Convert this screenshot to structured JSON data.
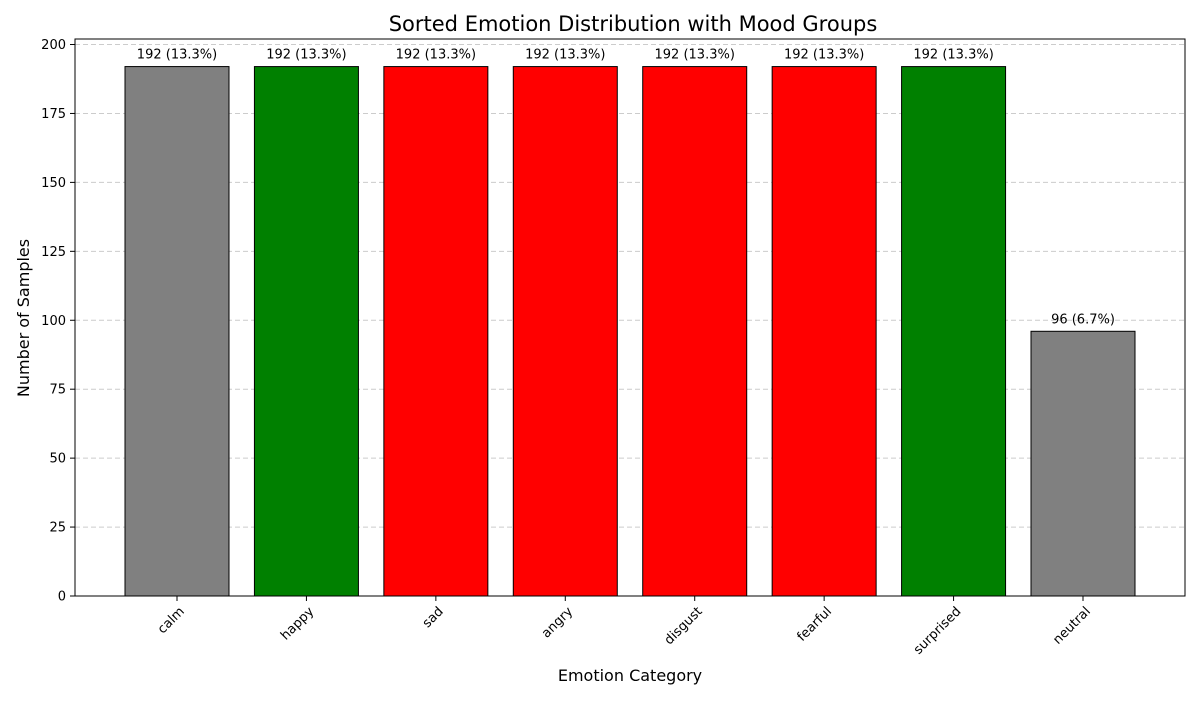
{
  "chart_data": {
    "type": "bar",
    "title": "Sorted Emotion Distribution with Mood Groups",
    "xlabel": "Emotion Category",
    "ylabel": "Number of Samples",
    "ylim": [
      0,
      202
    ],
    "yticks": [
      0,
      25,
      50,
      75,
      100,
      125,
      150,
      175,
      200
    ],
    "grid": "y-dashed",
    "categories": [
      "calm",
      "happy",
      "sad",
      "angry",
      "disgust",
      "fearful",
      "surprised",
      "neutral"
    ],
    "values": [
      192,
      192,
      192,
      192,
      192,
      192,
      192,
      96
    ],
    "data_labels": [
      "192 (13.3%)",
      "192 (13.3%)",
      "192 (13.3%)",
      "192 (13.3%)",
      "192 (13.3%)",
      "192 (13.3%)",
      "192 (13.3%)",
      "96 (6.7%)"
    ],
    "bar_colors": [
      "#808080",
      "#008000",
      "#ff0000",
      "#ff0000",
      "#ff0000",
      "#ff0000",
      "#008000",
      "#808080"
    ],
    "edge_color": "#000000",
    "xtick_rotation_deg": 45
  }
}
